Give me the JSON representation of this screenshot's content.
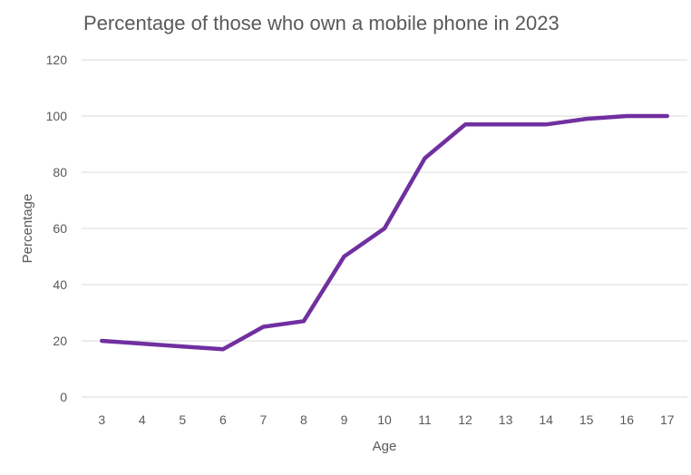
{
  "chart_data": {
    "type": "line",
    "title": "Percentage of those who own a mobile phone in 2023",
    "xlabel": "Age",
    "ylabel": "Percentage",
    "x": [
      3,
      4,
      5,
      6,
      7,
      8,
      9,
      10,
      11,
      12,
      13,
      14,
      15,
      16,
      17
    ],
    "series": [
      {
        "name": "Percentage",
        "values": [
          20,
          19,
          18,
          17,
          25,
          27,
          50,
          60,
          85,
          97,
          97,
          97,
          99,
          100,
          100
        ],
        "color": "#7030A0"
      }
    ],
    "ylim": [
      0,
      120
    ],
    "yticks": [
      0,
      20,
      40,
      60,
      80,
      100,
      120
    ],
    "grid": true,
    "legend": "none"
  }
}
